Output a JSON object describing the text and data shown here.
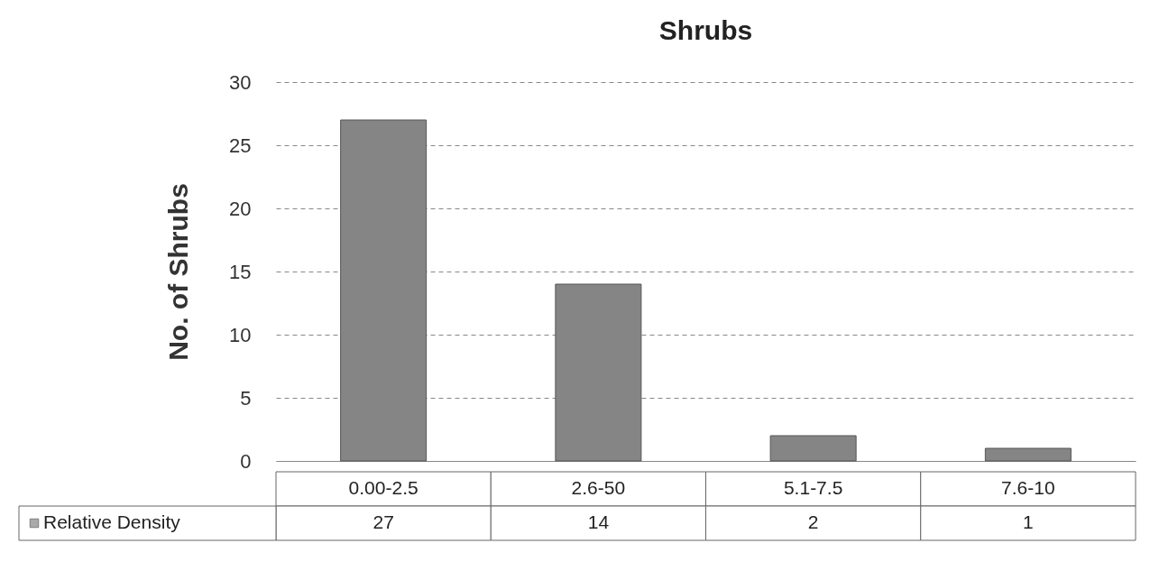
{
  "chart_data": {
    "type": "bar",
    "title": "Shrubs",
    "ylabel": "No. of Shrubs",
    "categories": [
      "0.00-2.5",
      "2.6-50",
      "5.1-7.5",
      "7.6-10"
    ],
    "series": [
      {
        "name": "Relative Density",
        "color": "#858585",
        "values": [
          27,
          14,
          2,
          1
        ]
      }
    ],
    "ylim": [
      0,
      30
    ],
    "yticks": [
      0,
      5,
      10,
      15,
      20,
      25,
      30
    ],
    "grid": "y",
    "data_labels": true,
    "legend": "bottom left",
    "tick_labels": "y"
  }
}
